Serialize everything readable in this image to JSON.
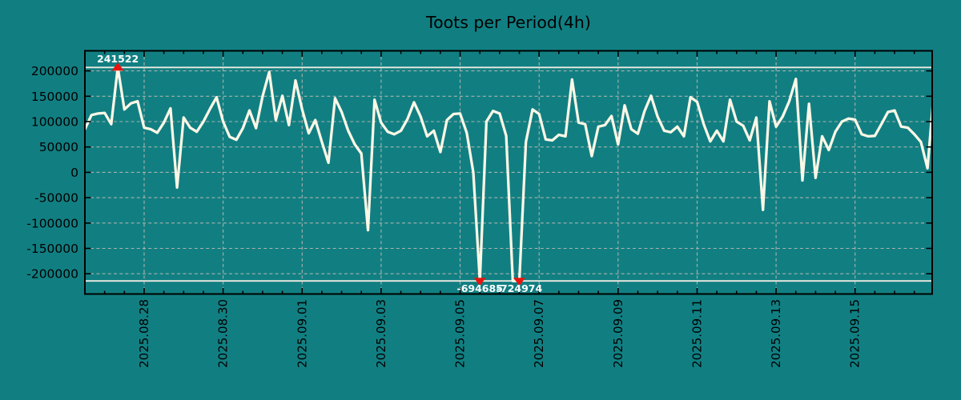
{
  "chart_data": {
    "type": "line",
    "title": "Toots per Period(4h)",
    "grid": true,
    "legend": null,
    "x_axis": {
      "tick_labels": [
        "2025.08.28",
        "2025.08.30",
        "2025.09.01",
        "2025.09.03",
        "2025.09.05",
        "2025.09.07",
        "2025.09.09",
        "2025.09.11",
        "2025.09.13",
        "2025.09.15"
      ],
      "major_tick_every_days": 2,
      "minor_tick_every_days": 0.5,
      "series_start": "2025.08.26 12:00",
      "interval_hours": 4
    },
    "y_axis": {
      "tick_values": [
        200000,
        150000,
        100000,
        50000,
        0,
        -50000,
        -100000,
        -150000,
        -200000
      ],
      "tick_labels": [
        "200000",
        "150000",
        "100000",
        "50000",
        "0",
        "-50000",
        "-100000",
        "-150000",
        "-200000"
      ],
      "clip_values": [
        207000,
        -214000
      ]
    },
    "series": {
      "values": [
        85000,
        113000,
        116000,
        117000,
        95000,
        241522,
        124000,
        136000,
        140000,
        88000,
        85000,
        78000,
        98000,
        126000,
        -30000,
        108000,
        88000,
        80000,
        100000,
        125000,
        148000,
        100000,
        70000,
        64000,
        87000,
        122000,
        87000,
        150000,
        198000,
        103000,
        151000,
        93000,
        181000,
        124000,
        77000,
        103000,
        60000,
        19000,
        146000,
        119000,
        82000,
        55000,
        37000,
        -114000,
        143000,
        98000,
        80000,
        75000,
        82000,
        105000,
        138000,
        110000,
        71000,
        82000,
        40000,
        103000,
        115000,
        116000,
        78000,
        0,
        -694685,
        100000,
        121000,
        116000,
        72000,
        -310000,
        -724974,
        60000,
        124000,
        115000,
        65000,
        63000,
        74000,
        71000,
        183000,
        98000,
        95000,
        32000,
        90000,
        93000,
        111000,
        55000,
        132000,
        85000,
        76000,
        120000,
        151000,
        110000,
        82000,
        79000,
        90000,
        71000,
        148000,
        139000,
        95000,
        61000,
        82000,
        61000,
        143000,
        100000,
        92000,
        63000,
        108000,
        -74000,
        140000,
        90000,
        110000,
        140000,
        184000,
        -16000,
        135000,
        -11000,
        71000,
        44000,
        80000,
        100000,
        106000,
        104000,
        75000,
        71000,
        72000,
        95000,
        119000,
        122000,
        90000,
        88000,
        75000,
        60000,
        8000,
        165000
      ]
    },
    "annotations": [
      {
        "type": "max",
        "index": 5,
        "value": 241522,
        "label": "241522",
        "marker": "triangle-up"
      },
      {
        "type": "min",
        "index": 60,
        "value": -694685,
        "label": "-694685",
        "marker": "triangle-down"
      },
      {
        "type": "min",
        "index": 66,
        "value": -724974,
        "label": "-724974",
        "marker": "triangle-down"
      }
    ],
    "colors": {
      "background": "#117f82",
      "line": "#fcf7e6",
      "grid": "#a8b2ac",
      "clip_line": "#edece2",
      "marker": "#e8140f",
      "annotation_text": "#ffffff",
      "axis_text": "#000000",
      "border": "#000000"
    }
  }
}
